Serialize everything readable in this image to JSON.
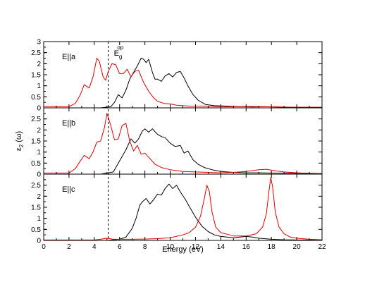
{
  "chart_data": {
    "type": "line",
    "xlabel": "Energy (eV)",
    "ylabel": "ε2 (ω)",
    "ylabel_main": "ε",
    "ylabel_sub": "2",
    "ylabel_rest": " (ω)",
    "xlim": [
      0,
      22
    ],
    "x_ticks": [
      0,
      2,
      4,
      6,
      8,
      10,
      12,
      14,
      16,
      18,
      20,
      22
    ],
    "grid": false,
    "legend": "none",
    "gap_marker": {
      "x": 5.1,
      "label_main": "E",
      "label_sub": "g",
      "label_sup": "op"
    },
    "colors": {
      "black": "#000000",
      "red": "#e00000"
    },
    "panels": [
      {
        "label": "E||a",
        "ylim": [
          0,
          3
        ],
        "y_ticks": [
          0,
          0.5,
          1,
          1.5,
          2,
          2.5,
          3
        ],
        "series": [
          {
            "color": "#000000",
            "x": [
              0,
              4.5,
              5.3,
              5.6,
              5.9,
              6.2,
              6.5,
              6.8,
              7.1,
              7.4,
              7.7,
              7.9,
              8.1,
              8.3,
              8.6,
              8.8,
              9.0,
              9.3,
              9.6,
              9.9,
              10.2,
              10.5,
              10.8,
              11.1,
              11.4,
              11.8,
              12.2,
              12.8,
              13.5,
              14.5,
              15.5,
              16.5,
              17.5,
              18.5,
              19.5,
              22
            ],
            "y": [
              0.0,
              0.0,
              0.05,
              0.25,
              0.6,
              0.45,
              0.8,
              1.3,
              1.6,
              1.9,
              2.25,
              2.2,
              2.05,
              2.2,
              1.6,
              1.3,
              1.3,
              1.2,
              1.45,
              1.55,
              1.4,
              1.6,
              1.65,
              1.35,
              1.0,
              0.6,
              0.35,
              0.15,
              0.1,
              0.08,
              0.06,
              0.06,
              0.05,
              0.04,
              0.03,
              0.02
            ]
          },
          {
            "color": "#e00000",
            "x": [
              0,
              2.0,
              2.5,
              2.9,
              3.2,
              3.6,
              3.9,
              4.2,
              4.4,
              4.7,
              4.9,
              5.1,
              5.4,
              5.7,
              6.0,
              6.3,
              6.6,
              6.9,
              7.2,
              7.5,
              7.9,
              8.3,
              8.7,
              9.0,
              9.5,
              10.0,
              10.5,
              11.5,
              12.5,
              13.5,
              14.5,
              15.5,
              16.5,
              17.5,
              18.5,
              20,
              22
            ],
            "y": [
              0.05,
              0.05,
              0.2,
              0.6,
              1.05,
              0.9,
              1.4,
              2.25,
              2.1,
              1.4,
              1.25,
              1.65,
              2.0,
              1.95,
              1.55,
              1.55,
              1.75,
              1.4,
              1.65,
              1.7,
              1.15,
              0.75,
              0.45,
              0.3,
              0.2,
              0.18,
              0.12,
              0.08,
              0.08,
              0.06,
              0.05,
              0.06,
              0.04,
              0.05,
              0.04,
              0.03,
              0.03
            ]
          }
        ]
      },
      {
        "label": "E||b",
        "ylim": [
          0,
          3
        ],
        "y_ticks": [
          0,
          0.5,
          1,
          1.5,
          2,
          2.5
        ],
        "series": [
          {
            "color": "#000000",
            "x": [
              0,
              4.5,
              5.5,
              6.0,
              6.5,
              6.9,
              7.2,
              7.5,
              7.8,
              8.0,
              8.3,
              8.6,
              9.0,
              9.3,
              9.6,
              10.0,
              10.4,
              10.8,
              11.1,
              11.4,
              11.8,
              12.2,
              12.7,
              13.3,
              14.0,
              15.0,
              16.0,
              17.0,
              18.0,
              19.5,
              22
            ],
            "y": [
              0.0,
              0.0,
              0.1,
              0.6,
              1.1,
              1.6,
              1.4,
              1.6,
              1.95,
              2.05,
              1.9,
              2.05,
              1.8,
              1.7,
              1.65,
              1.4,
              1.25,
              1.3,
              0.95,
              1.05,
              0.65,
              0.45,
              0.3,
              0.2,
              0.12,
              0.08,
              0.06,
              0.06,
              0.05,
              0.04,
              0.03
            ]
          },
          {
            "color": "#e00000",
            "x": [
              0,
              2.0,
              2.5,
              2.9,
              3.2,
              3.6,
              3.9,
              4.2,
              4.5,
              4.8,
              5.0,
              5.3,
              5.6,
              5.9,
              6.2,
              6.5,
              6.8,
              7.1,
              7.4,
              7.7,
              8.0,
              8.4,
              8.8,
              9.3,
              10.0,
              11.0,
              12.0,
              13.0,
              14.0,
              15.0,
              16.0,
              17.0,
              17.6,
              18.3,
              19.0,
              20.0,
              21.0,
              22
            ],
            "y": [
              0.05,
              0.05,
              0.25,
              0.6,
              0.85,
              0.7,
              1.0,
              1.45,
              1.5,
              2.1,
              2.75,
              2.2,
              1.55,
              1.6,
              2.2,
              2.3,
              1.5,
              1.05,
              1.3,
              0.9,
              0.95,
              0.7,
              0.45,
              0.3,
              0.2,
              0.12,
              0.1,
              0.08,
              0.06,
              0.08,
              0.12,
              0.2,
              0.22,
              0.15,
              0.1,
              0.06,
              0.04,
              0.03
            ]
          }
        ]
      },
      {
        "label": "E||c",
        "ylim": [
          0,
          3
        ],
        "y_ticks": [
          0,
          0.5,
          1,
          1.5,
          2,
          2.5
        ],
        "series": [
          {
            "color": "#000000",
            "x": [
              0,
              5.0,
              6.0,
              6.5,
              7.0,
              7.3,
              7.6,
              7.8,
              8.1,
              8.4,
              8.7,
              9.0,
              9.3,
              9.6,
              9.9,
              10.2,
              10.5,
              10.8,
              11.2,
              11.6,
              12.0,
              12.5,
              13.0,
              13.5,
              14.0,
              14.5,
              15.0,
              15.5,
              16.0,
              16.5,
              17.0,
              18.0,
              19.0,
              20.0,
              22
            ],
            "y": [
              0.0,
              0.0,
              0.05,
              0.15,
              0.55,
              1.0,
              1.6,
              1.75,
              1.9,
              1.65,
              1.85,
              2.1,
              2.05,
              2.35,
              2.55,
              2.35,
              2.5,
              2.2,
              1.85,
              1.45,
              1.05,
              0.65,
              0.4,
              0.25,
              0.18,
              0.15,
              0.12,
              0.15,
              0.18,
              0.15,
              0.1,
              0.05,
              0.03,
              0.02,
              0.02
            ]
          },
          {
            "color": "#e00000",
            "x": [
              0,
              4.0,
              4.5,
              5.0,
              5.5,
              6.0,
              7.0,
              8.0,
              9.0,
              10.0,
              11.0,
              11.5,
              12.0,
              12.4,
              12.7,
              12.9,
              13.1,
              13.3,
              13.6,
              14.0,
              14.5,
              15.0,
              16.0,
              16.8,
              17.3,
              17.6,
              17.8,
              17.95,
              18.1,
              18.3,
              18.6,
              19.0,
              19.5,
              20.0,
              21.0,
              22
            ],
            "y": [
              0.02,
              0.02,
              0.05,
              0.1,
              0.05,
              0.05,
              0.05,
              0.06,
              0.08,
              0.12,
              0.25,
              0.35,
              0.6,
              1.1,
              1.9,
              2.5,
              2.2,
              1.3,
              0.6,
              0.35,
              0.28,
              0.2,
              0.2,
              0.3,
              0.6,
              1.2,
              2.2,
              2.85,
              2.4,
              1.3,
              0.6,
              0.3,
              0.15,
              0.1,
              0.05,
              0.03
            ]
          }
        ]
      }
    ]
  }
}
